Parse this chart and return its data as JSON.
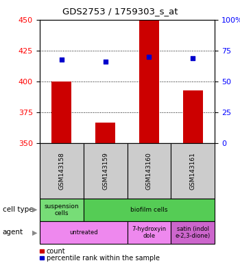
{
  "title": "GDS2753 / 1759303_s_at",
  "samples": [
    "GSM143158",
    "GSM143159",
    "GSM143160",
    "GSM143161"
  ],
  "bar_values": [
    400,
    367,
    450,
    393
  ],
  "bar_color": "#cc0000",
  "dot_values": [
    418,
    416,
    420,
    419
  ],
  "dot_color": "#0000cc",
  "ylim_left": [
    350,
    450
  ],
  "yticks_left": [
    350,
    375,
    400,
    425,
    450
  ],
  "ytick_labels_right": [
    "0",
    "25",
    "50",
    "75",
    "100%"
  ],
  "right_tick_positions": [
    350,
    375,
    400,
    425,
    450
  ],
  "grid_values": [
    375,
    400,
    425
  ],
  "cell_type_items": [
    {
      "label": "suspension\ncells",
      "span": 1,
      "color": "#77dd77"
    },
    {
      "label": "biofilm cells",
      "span": 3,
      "color": "#55cc55"
    }
  ],
  "agent_items": [
    {
      "label": "untreated",
      "span": 2,
      "color": "#ee88ee"
    },
    {
      "label": "7-hydroxyin\ndole",
      "span": 1,
      "color": "#ee88ee"
    },
    {
      "label": "satin (indol\ne-2,3-dione)",
      "span": 1,
      "color": "#cc66cc"
    }
  ],
  "legend_red_label": "count",
  "legend_blue_label": "percentile rank within the sample",
  "cell_type_label": "cell type",
  "agent_label": "agent",
  "fig_width": 3.5,
  "fig_height": 3.84,
  "dpi": 100
}
